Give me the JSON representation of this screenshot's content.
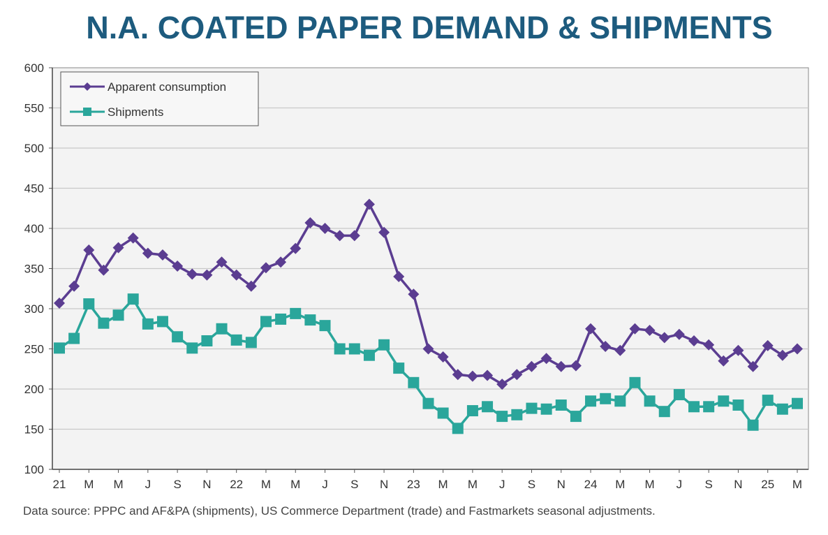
{
  "chart_data": {
    "type": "line",
    "title": "N.A. COATED PAPER DEMAND & SHIPMENTS",
    "source": "Data source: PPPC and AF&PA (shipments), US Commerce Department (trade) and Fastmarkets seasonal adjustments.",
    "ylim": [
      100,
      600
    ],
    "yticks": [
      "100",
      "150",
      "200",
      "250",
      "300",
      "350",
      "400",
      "450",
      "500",
      "550",
      "600"
    ],
    "xticks": [
      "21",
      "M",
      "M",
      "J",
      "S",
      "N",
      "22",
      "M",
      "M",
      "J",
      "S",
      "N",
      "23",
      "M",
      "M",
      "J",
      "S",
      "N",
      "24",
      "M",
      "M",
      "J",
      "S",
      "N",
      "25",
      "M"
    ],
    "x": [
      "Jan 21",
      "Feb 21",
      "Mar 21",
      "Apr 21",
      "May 21",
      "Jun 21",
      "Jul 21",
      "Aug 21",
      "Sep 21",
      "Oct 21",
      "Nov 21",
      "Dec 21",
      "Jan 22",
      "Feb 22",
      "Mar 22",
      "Apr 22",
      "May 22",
      "Jun 22",
      "Jul 22",
      "Aug 22",
      "Sep 22",
      "Oct 22",
      "Nov 22",
      "Dec 22",
      "Jan 23",
      "Feb 23",
      "Mar 23",
      "Apr 23",
      "May 23",
      "Jun 23",
      "Jul 23",
      "Aug 23",
      "Sep 23",
      "Oct 23",
      "Nov 23",
      "Dec 23",
      "Jan 24",
      "Feb 24",
      "Mar 24",
      "Apr 24",
      "May 24",
      "Jun 24",
      "Jul 24",
      "Aug 24",
      "Sep 24",
      "Oct 24",
      "Nov 24",
      "Dec 24",
      "Jan 25",
      "Feb 25",
      "Mar 25"
    ],
    "grid": true,
    "legend_position": "top-left",
    "series": [
      {
        "name": "Apparent consumption",
        "color": "#5b3d91",
        "marker": "diamond",
        "values": [
          307,
          328,
          373,
          348,
          376,
          388,
          369,
          367,
          353,
          343,
          342,
          358,
          342,
          328,
          351,
          358,
          375,
          407,
          400,
          391,
          391,
          430,
          395,
          340,
          318,
          250,
          240,
          218,
          216,
          217,
          206,
          218,
          228,
          238,
          228,
          229,
          275,
          253,
          248,
          275,
          273,
          264,
          268,
          260,
          255,
          235,
          248,
          228,
          254,
          242,
          250
        ]
      },
      {
        "name": "Shipments",
        "color": "#2aa69b",
        "marker": "square",
        "values": [
          251,
          263,
          306,
          282,
          292,
          312,
          281,
          284,
          265,
          251,
          260,
          275,
          261,
          258,
          284,
          287,
          294,
          286,
          279,
          250,
          250,
          242,
          255,
          226,
          208,
          182,
          170,
          151,
          173,
          178,
          166,
          168,
          176,
          175,
          180,
          166,
          185,
          188,
          185,
          208,
          185,
          172,
          193,
          178,
          178,
          185,
          180,
          155,
          186,
          175,
          182
        ]
      }
    ]
  }
}
